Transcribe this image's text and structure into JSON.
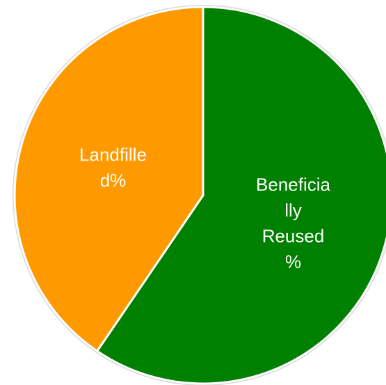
{
  "chart_data": {
    "type": "pie",
    "start_angle_deg": 0,
    "direction": "clockwise",
    "slices": [
      {
        "category": "Beneficially Reused %",
        "value": 59.5,
        "color": "#008000",
        "label_lines": [
          "Beneficia",
          "lly",
          "Reused",
          "%"
        ]
      },
      {
        "category": "Landfilled %",
        "value": 40.5,
        "color": "#ff9900",
        "label_lines": [
          "Landfille",
          "d%"
        ]
      }
    ],
    "edge_color": "#ffffff",
    "outline_color": "#d9d9d9",
    "legend": "none"
  }
}
